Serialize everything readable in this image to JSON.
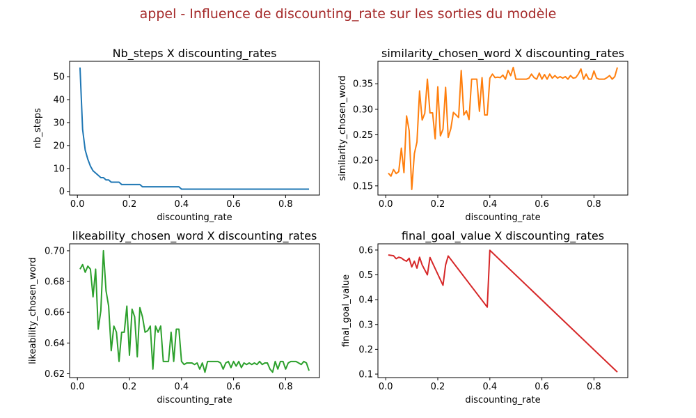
{
  "figure": {
    "suptitle": "appel - Influence de discounting_rate sur les sorties du modèle",
    "suptitle_color": "#a52a2a"
  },
  "chart_data": [
    {
      "type": "line",
      "title": "Nb_steps X discounting_rates",
      "xlabel": "discounting_rate",
      "ylabel": "nb_steps",
      "xlim": [
        -0.03,
        0.93
      ],
      "ylim": [
        -1.6,
        56.7
      ],
      "xticks": [
        0.0,
        0.2,
        0.4,
        0.6,
        0.8
      ],
      "yticks": [
        0,
        10,
        20,
        30,
        40,
        50
      ],
      "grid": false,
      "color": "#1f77b4",
      "series": [
        {
          "x": [
            0.01,
            0.02,
            0.03,
            0.04,
            0.05,
            0.06,
            0.07,
            0.08,
            0.09,
            0.1,
            0.11,
            0.12,
            0.13,
            0.14,
            0.15,
            0.16,
            0.17,
            0.18,
            0.19,
            0.2,
            0.21,
            0.22,
            0.23,
            0.24,
            0.25,
            0.26,
            0.27,
            0.28,
            0.29,
            0.3,
            0.31,
            0.32,
            0.33,
            0.34,
            0.35,
            0.36,
            0.37,
            0.38,
            0.39,
            0.4,
            0.41,
            0.42,
            0.43,
            0.44,
            0.45,
            0.46,
            0.47,
            0.48,
            0.49,
            0.5,
            0.51,
            0.52,
            0.53,
            0.54,
            0.55,
            0.56,
            0.57,
            0.58,
            0.59,
            0.6,
            0.61,
            0.62,
            0.63,
            0.64,
            0.65,
            0.66,
            0.67,
            0.68,
            0.69,
            0.7,
            0.71,
            0.72,
            0.73,
            0.74,
            0.75,
            0.76,
            0.77,
            0.78,
            0.79,
            0.8,
            0.81,
            0.82,
            0.83,
            0.84,
            0.85,
            0.86,
            0.87,
            0.88,
            0.89
          ],
          "y": [
            54,
            27,
            18,
            14,
            11,
            9,
            8,
            7,
            6,
            6,
            5,
            5,
            4,
            4,
            4,
            4,
            3,
            3,
            3,
            3,
            3,
            3,
            3,
            3,
            2,
            2,
            2,
            2,
            2,
            2,
            2,
            2,
            2,
            2,
            2,
            2,
            2,
            2,
            2,
            1,
            1,
            1,
            1,
            1,
            1,
            1,
            1,
            1,
            1,
            1,
            1,
            1,
            1,
            1,
            1,
            1,
            1,
            1,
            1,
            1,
            1,
            1,
            1,
            1,
            1,
            1,
            1,
            1,
            1,
            1,
            1,
            1,
            1,
            1,
            1,
            1,
            1,
            1,
            1,
            1,
            1,
            1,
            1,
            1,
            1,
            1,
            1,
            1,
            1
          ]
        }
      ]
    },
    {
      "type": "line",
      "title": "similarity_chosen_word X discounting_rates",
      "xlabel": "discounting_rate",
      "ylabel": "similarity_chosen_word",
      "xlim": [
        -0.03,
        0.93
      ],
      "ylim": [
        0.132,
        0.394
      ],
      "xticks": [
        0.0,
        0.2,
        0.4,
        0.6,
        0.8
      ],
      "yticks": [
        0.15,
        0.2,
        0.25,
        0.3,
        0.35
      ],
      "grid": false,
      "color": "#ff7f0e",
      "series": [
        {
          "x": [
            0.01,
            0.02,
            0.03,
            0.04,
            0.05,
            0.06,
            0.07,
            0.08,
            0.09,
            0.1,
            0.11,
            0.12,
            0.13,
            0.14,
            0.15,
            0.16,
            0.17,
            0.18,
            0.19,
            0.2,
            0.21,
            0.22,
            0.23,
            0.24,
            0.25,
            0.26,
            0.27,
            0.28,
            0.29,
            0.3,
            0.31,
            0.32,
            0.33,
            0.34,
            0.35,
            0.36,
            0.37,
            0.38,
            0.39,
            0.4,
            0.41,
            0.42,
            0.43,
            0.44,
            0.45,
            0.46,
            0.47,
            0.48,
            0.49,
            0.5,
            0.51,
            0.52,
            0.53,
            0.54,
            0.55,
            0.56,
            0.57,
            0.58,
            0.59,
            0.6,
            0.61,
            0.62,
            0.63,
            0.64,
            0.65,
            0.66,
            0.67,
            0.68,
            0.69,
            0.7,
            0.71,
            0.72,
            0.73,
            0.74,
            0.75,
            0.76,
            0.77,
            0.78,
            0.79,
            0.8,
            0.81,
            0.82,
            0.83,
            0.84,
            0.85,
            0.86,
            0.87,
            0.88,
            0.89
          ],
          "y": [
            0.175,
            0.169,
            0.182,
            0.174,
            0.178,
            0.224,
            0.176,
            0.287,
            0.258,
            0.143,
            0.213,
            0.236,
            0.336,
            0.279,
            0.292,
            0.359,
            0.293,
            0.293,
            0.242,
            0.344,
            0.248,
            0.261,
            0.343,
            0.245,
            0.262,
            0.294,
            0.289,
            0.284,
            0.376,
            0.289,
            0.297,
            0.28,
            0.359,
            0.359,
            0.359,
            0.296,
            0.362,
            0.289,
            0.289,
            0.361,
            0.369,
            0.362,
            0.363,
            0.362,
            0.367,
            0.359,
            0.376,
            0.366,
            0.382,
            0.359,
            0.359,
            0.359,
            0.359,
            0.359,
            0.361,
            0.369,
            0.362,
            0.359,
            0.371,
            0.359,
            0.368,
            0.359,
            0.369,
            0.361,
            0.366,
            0.361,
            0.364,
            0.361,
            0.364,
            0.359,
            0.366,
            0.361,
            0.362,
            0.369,
            0.379,
            0.359,
            0.369,
            0.359,
            0.359,
            0.375,
            0.361,
            0.359,
            0.359,
            0.359,
            0.362,
            0.366,
            0.359,
            0.364,
            0.382
          ]
        }
      ]
    },
    {
      "type": "line",
      "title": "likeability_chosen_word X discounting_rates",
      "xlabel": "discounting_rate",
      "ylabel": "likeability_chosen_word",
      "xlim": [
        -0.03,
        0.93
      ],
      "ylim": [
        0.6175,
        0.7045
      ],
      "xticks": [
        0.0,
        0.2,
        0.4,
        0.6,
        0.8
      ],
      "yticks": [
        0.62,
        0.64,
        0.66,
        0.68,
        0.7
      ],
      "grid": false,
      "color": "#2ca02c",
      "series": [
        {
          "x": [
            0.01,
            0.02,
            0.03,
            0.04,
            0.05,
            0.06,
            0.07,
            0.08,
            0.09,
            0.1,
            0.11,
            0.12,
            0.13,
            0.14,
            0.15,
            0.16,
            0.17,
            0.18,
            0.19,
            0.2,
            0.21,
            0.22,
            0.23,
            0.24,
            0.25,
            0.26,
            0.27,
            0.28,
            0.29,
            0.3,
            0.31,
            0.32,
            0.33,
            0.34,
            0.35,
            0.36,
            0.37,
            0.38,
            0.39,
            0.4,
            0.41,
            0.42,
            0.43,
            0.44,
            0.45,
            0.46,
            0.47,
            0.48,
            0.49,
            0.5,
            0.51,
            0.52,
            0.53,
            0.54,
            0.55,
            0.56,
            0.57,
            0.58,
            0.59,
            0.6,
            0.61,
            0.62,
            0.63,
            0.64,
            0.65,
            0.66,
            0.67,
            0.68,
            0.69,
            0.7,
            0.71,
            0.72,
            0.73,
            0.74,
            0.75,
            0.76,
            0.77,
            0.78,
            0.79,
            0.8,
            0.81,
            0.82,
            0.83,
            0.84,
            0.85,
            0.86,
            0.87,
            0.88,
            0.89
          ],
          "y": [
            0.688,
            0.691,
            0.686,
            0.69,
            0.688,
            0.67,
            0.688,
            0.649,
            0.661,
            0.7,
            0.674,
            0.664,
            0.635,
            0.651,
            0.647,
            0.628,
            0.647,
            0.647,
            0.664,
            0.632,
            0.662,
            0.657,
            0.631,
            0.663,
            0.657,
            0.647,
            0.648,
            0.651,
            0.623,
            0.651,
            0.647,
            0.651,
            0.628,
            0.628,
            0.628,
            0.647,
            0.628,
            0.649,
            0.649,
            0.628,
            0.626,
            0.627,
            0.627,
            0.627,
            0.626,
            0.627,
            0.623,
            0.627,
            0.621,
            0.628,
            0.628,
            0.628,
            0.628,
            0.628,
            0.627,
            0.623,
            0.627,
            0.628,
            0.624,
            0.628,
            0.625,
            0.628,
            0.624,
            0.627,
            0.626,
            0.627,
            0.626,
            0.627,
            0.626,
            0.628,
            0.626,
            0.627,
            0.627,
            0.623,
            0.621,
            0.628,
            0.623,
            0.628,
            0.628,
            0.623,
            0.627,
            0.628,
            0.628,
            0.628,
            0.627,
            0.626,
            0.628,
            0.627,
            0.622
          ]
        }
      ]
    },
    {
      "type": "line",
      "title": "final_goal_value X discounting_rates",
      "xlabel": "discounting_rate",
      "ylabel": "final_goal_value",
      "xlim": [
        -0.03,
        0.93
      ],
      "ylim": [
        0.086,
        0.625
      ],
      "xticks": [
        0.0,
        0.2,
        0.4,
        0.6,
        0.8
      ],
      "yticks": [
        0.1,
        0.2,
        0.3,
        0.4,
        0.5,
        0.6
      ],
      "grid": false,
      "color": "#d62728",
      "series": [
        {
          "x": [
            0.01,
            0.03,
            0.04,
            0.05,
            0.06,
            0.07,
            0.08,
            0.09,
            0.1,
            0.11,
            0.12,
            0.13,
            0.14,
            0.16,
            0.17,
            0.22,
            0.23,
            0.24,
            0.39,
            0.4,
            0.89
          ],
          "y": [
            0.58,
            0.577,
            0.565,
            0.571,
            0.568,
            0.56,
            0.555,
            0.567,
            0.532,
            0.555,
            0.527,
            0.571,
            0.54,
            0.5,
            0.57,
            0.458,
            0.54,
            0.576,
            0.37,
            0.599,
            0.108
          ]
        }
      ]
    }
  ]
}
